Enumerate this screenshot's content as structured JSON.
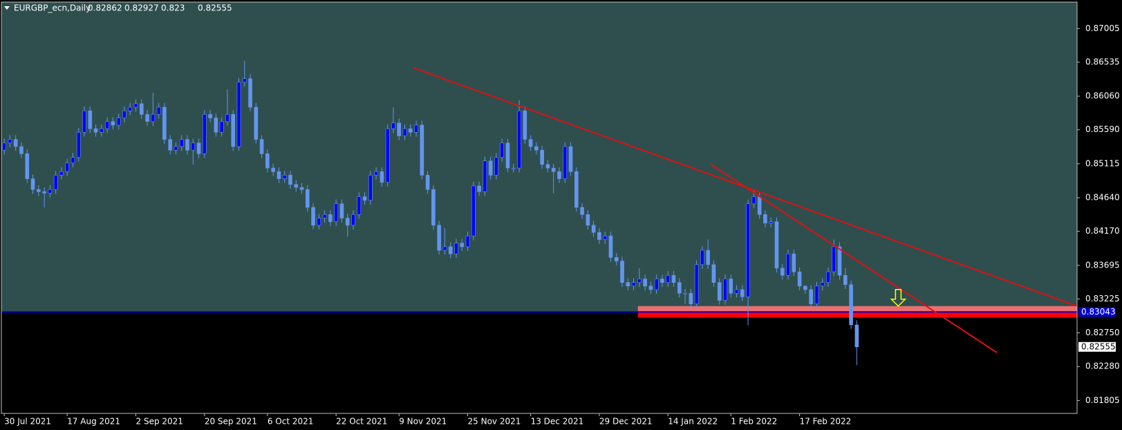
{
  "chart_data": {
    "type": "candlestick",
    "symbol": "EURGBP_ecn,Daily",
    "categories": [
      "30 Jul 2021",
      null,
      null,
      null,
      null,
      null,
      null,
      null,
      null,
      null,
      null,
      "17 Aug 2021",
      null,
      null,
      null,
      null,
      null,
      null,
      null,
      null,
      null,
      null,
      null,
      "2 Sep 2021",
      null,
      null,
      null,
      null,
      null,
      null,
      null,
      null,
      null,
      null,
      null,
      "20 Sep 2021",
      null,
      null,
      null,
      null,
      null,
      null,
      null,
      null,
      null,
      null,
      "6 Oct 2021",
      null,
      null,
      null,
      null,
      null,
      null,
      null,
      null,
      null,
      null,
      null,
      "22 Oct 2021",
      null,
      null,
      null,
      null,
      null,
      null,
      null,
      null,
      null,
      null,
      "9 Nov 2021",
      null,
      null,
      null,
      null,
      null,
      null,
      null,
      null,
      null,
      null,
      null,
      "25 Nov 2021",
      null,
      null,
      null,
      null,
      null,
      null,
      null,
      null,
      null,
      null,
      "13 Dec 2021",
      null,
      null,
      null,
      null,
      null,
      null,
      null,
      null,
      null,
      null,
      null,
      "29 Dec 2021",
      null,
      null,
      null,
      null,
      null,
      null,
      null,
      null,
      null,
      null,
      null,
      "14 Jan 2022",
      null,
      null,
      null,
      null,
      null,
      null,
      null,
      null,
      null,
      null,
      "1 Feb 2022",
      null,
      null,
      null,
      null,
      null,
      null,
      null,
      null,
      null,
      null,
      null,
      "17 Feb 2022",
      null,
      null,
      null,
      null,
      null,
      null,
      null,
      null,
      null,
      null
    ],
    "ohlc": [
      [
        0.85305,
        0.85465,
        0.85245,
        0.85405
      ],
      [
        0.85405,
        0.85515,
        0.85345,
        0.85455
      ],
      [
        0.85455,
        0.85515,
        0.85295,
        0.85355
      ],
      [
        0.85355,
        0.85415,
        0.85195,
        0.85255
      ],
      [
        0.85255,
        0.85315,
        0.84845,
        0.84905
      ],
      [
        0.84905,
        0.84965,
        0.84695,
        0.84755
      ],
      [
        0.84755,
        0.84815,
        0.84665,
        0.84725
      ],
      [
        0.84725,
        0.84785,
        0.84505,
        0.84705
      ],
      [
        0.84705,
        0.84815,
        0.84645,
        0.84755
      ],
      [
        0.84755,
        0.85015,
        0.84695,
        0.84955
      ],
      [
        0.84955,
        0.85065,
        0.84895,
        0.85005
      ],
      [
        0.85005,
        0.85185,
        0.84945,
        0.85125
      ],
      [
        0.85125,
        0.85265,
        0.85065,
        0.85205
      ],
      [
        0.85205,
        0.85615,
        0.85145,
        0.85555
      ],
      [
        0.85555,
        0.85915,
        0.85495,
        0.85855
      ],
      [
        0.85855,
        0.85915,
        0.85545,
        0.85605
      ],
      [
        0.85605,
        0.85665,
        0.85495,
        0.85555
      ],
      [
        0.85555,
        0.85665,
        0.85495,
        0.85605
      ],
      [
        0.85605,
        0.85765,
        0.85545,
        0.85705
      ],
      [
        0.85705,
        0.85765,
        0.85595,
        0.85655
      ],
      [
        0.85655,
        0.85815,
        0.85595,
        0.85755
      ],
      [
        0.85755,
        0.85915,
        0.85695,
        0.85855
      ],
      [
        0.85855,
        0.85965,
        0.85795,
        0.85905
      ],
      [
        0.85905,
        0.86015,
        0.85845,
        0.85955
      ],
      [
        0.85955,
        0.86015,
        0.85745,
        0.85805
      ],
      [
        0.85805,
        0.85865,
        0.85645,
        0.85705
      ],
      [
        0.85705,
        0.86105,
        0.85645,
        0.85805
      ],
      [
        0.85805,
        0.85965,
        0.85745,
        0.85905
      ],
      [
        0.85905,
        0.85965,
        0.85395,
        0.85455
      ],
      [
        0.85455,
        0.85515,
        0.85245,
        0.85305
      ],
      [
        0.85305,
        0.85415,
        0.85245,
        0.85355
      ],
      [
        0.85355,
        0.85515,
        0.85295,
        0.85455
      ],
      [
        0.85455,
        0.85515,
        0.85245,
        0.85305
      ],
      [
        0.85305,
        0.85465,
        0.85105,
        0.85405
      ],
      [
        0.85405,
        0.85465,
        0.85195,
        0.85255
      ],
      [
        0.85255,
        0.85865,
        0.85195,
        0.85805
      ],
      [
        0.85805,
        0.85865,
        0.85695,
        0.85755
      ],
      [
        0.85755,
        0.85815,
        0.85495,
        0.85555
      ],
      [
        0.85555,
        0.85765,
        0.85495,
        0.85705
      ],
      [
        0.85705,
        0.86155,
        0.85645,
        0.85805
      ],
      [
        0.85805,
        0.85865,
        0.85295,
        0.85355
      ],
      [
        0.85355,
        0.86315,
        0.85295,
        0.86255
      ],
      [
        0.86255,
        0.86555,
        0.86195,
        0.86305
      ],
      [
        0.86305,
        0.86365,
        0.85845,
        0.85905
      ],
      [
        0.85905,
        0.85965,
        0.85395,
        0.85455
      ],
      [
        0.85455,
        0.85515,
        0.85195,
        0.85255
      ],
      [
        0.85255,
        0.85315,
        0.84995,
        0.85055
      ],
      [
        0.85055,
        0.85115,
        0.84945,
        0.85005
      ],
      [
        0.85005,
        0.85065,
        0.84845,
        0.84905
      ],
      [
        0.84905,
        0.85015,
        0.84845,
        0.84955
      ],
      [
        0.84955,
        0.85015,
        0.84765,
        0.84825
      ],
      [
        0.84825,
        0.84885,
        0.84725,
        0.84785
      ],
      [
        0.84785,
        0.84845,
        0.84695,
        0.84755
      ],
      [
        0.84755,
        0.84815,
        0.84445,
        0.84505
      ],
      [
        0.84505,
        0.84565,
        0.84195,
        0.84255
      ],
      [
        0.84255,
        0.84415,
        0.84195,
        0.84355
      ],
      [
        0.84355,
        0.84465,
        0.84295,
        0.84405
      ],
      [
        0.84405,
        0.84465,
        0.84245,
        0.84305
      ],
      [
        0.84305,
        0.84615,
        0.84245,
        0.84555
      ],
      [
        0.84555,
        0.84615,
        0.84295,
        0.84355
      ],
      [
        0.84355,
        0.84415,
        0.84095,
        0.84255
      ],
      [
        0.84255,
        0.84465,
        0.84195,
        0.84405
      ],
      [
        0.84405,
        0.84715,
        0.84345,
        0.84655
      ],
      [
        0.84655,
        0.84715,
        0.84545,
        0.84605
      ],
      [
        0.84605,
        0.85015,
        0.84545,
        0.84955
      ],
      [
        0.84955,
        0.85065,
        0.84895,
        0.85005
      ],
      [
        0.85005,
        0.85065,
        0.84795,
        0.84855
      ],
      [
        0.84855,
        0.85665,
        0.84795,
        0.85605
      ],
      [
        0.85605,
        0.85905,
        0.85545,
        0.85685
      ],
      [
        0.85685,
        0.85745,
        0.85445,
        0.85505
      ],
      [
        0.85505,
        0.85665,
        0.85445,
        0.85605
      ],
      [
        0.85605,
        0.85665,
        0.85495,
        0.85555
      ],
      [
        0.85555,
        0.85715,
        0.85495,
        0.85655
      ],
      [
        0.85655,
        0.85715,
        0.84895,
        0.84955
      ],
      [
        0.84955,
        0.85015,
        0.84695,
        0.84755
      ],
      [
        0.84755,
        0.84815,
        0.84195,
        0.84255
      ],
      [
        0.84255,
        0.84315,
        0.83845,
        0.83905
      ],
      [
        0.83905,
        0.84215,
        0.83845,
        0.83955
      ],
      [
        0.83955,
        0.84015,
        0.83795,
        0.83855
      ],
      [
        0.83855,
        0.84065,
        0.83795,
        0.84005
      ],
      [
        0.84005,
        0.84065,
        0.83895,
        0.83955
      ],
      [
        0.83955,
        0.84165,
        0.83895,
        0.84105
      ],
      [
        0.84105,
        0.84865,
        0.84045,
        0.84805
      ],
      [
        0.84805,
        0.84865,
        0.84665,
        0.84725
      ],
      [
        0.84725,
        0.85215,
        0.84665,
        0.85155
      ],
      [
        0.85155,
        0.85215,
        0.84895,
        0.84955
      ],
      [
        0.84955,
        0.85265,
        0.84895,
        0.85205
      ],
      [
        0.85205,
        0.85465,
        0.85145,
        0.85405
      ],
      [
        0.85405,
        0.85465,
        0.84995,
        0.85055
      ],
      [
        0.85055,
        0.85115,
        0.84995,
        0.85055
      ],
      [
        0.85055,
        0.86005,
        0.84995,
        0.85855
      ],
      [
        0.85855,
        0.85915,
        0.85395,
        0.85455
      ],
      [
        0.85455,
        0.85515,
        0.85295,
        0.85355
      ],
      [
        0.85355,
        0.85415,
        0.85245,
        0.85305
      ],
      [
        0.85305,
        0.85365,
        0.85045,
        0.85105
      ],
      [
        0.85105,
        0.85165,
        0.84995,
        0.85055
      ],
      [
        0.85055,
        0.85115,
        0.84705,
        0.85005
      ],
      [
        0.85005,
        0.85065,
        0.84845,
        0.84905
      ],
      [
        0.84905,
        0.85415,
        0.84845,
        0.85355
      ],
      [
        0.85355,
        0.85415,
        0.84945,
        0.85005
      ],
      [
        0.85005,
        0.85065,
        0.84445,
        0.84505
      ],
      [
        0.84505,
        0.84565,
        0.84345,
        0.84405
      ],
      [
        0.84405,
        0.84465,
        0.84195,
        0.84255
      ],
      [
        0.84255,
        0.84315,
        0.84095,
        0.84155
      ],
      [
        0.84155,
        0.84215,
        0.83995,
        0.84055
      ],
      [
        0.84055,
        0.84165,
        0.83995,
        0.84105
      ],
      [
        0.84105,
        0.84165,
        0.83745,
        0.83805
      ],
      [
        0.83805,
        0.83865,
        0.83695,
        0.83755
      ],
      [
        0.83755,
        0.83815,
        0.83395,
        0.83455
      ],
      [
        0.83455,
        0.83515,
        0.83345,
        0.83405
      ],
      [
        0.83405,
        0.83515,
        0.83345,
        0.83455
      ],
      [
        0.83455,
        0.83655,
        0.83395,
        0.83505
      ],
      [
        0.83505,
        0.83565,
        0.83345,
        0.83405
      ],
      [
        0.83405,
        0.83465,
        0.83295,
        0.83355
      ],
      [
        0.83355,
        0.83565,
        0.83295,
        0.83505
      ],
      [
        0.83505,
        0.83565,
        0.83395,
        0.83455
      ],
      [
        0.83455,
        0.83615,
        0.83395,
        0.83555
      ],
      [
        0.83555,
        0.83615,
        0.83395,
        0.83455
      ],
      [
        0.83455,
        0.83515,
        0.83245,
        0.83305
      ],
      [
        0.83305,
        0.83365,
        0.83155,
        0.83305
      ],
      [
        0.83305,
        0.83365,
        0.83095,
        0.83155
      ],
      [
        0.83155,
        0.83765,
        0.83095,
        0.83705
      ],
      [
        0.83705,
        0.83965,
        0.83645,
        0.83905
      ],
      [
        0.83905,
        0.84055,
        0.83645,
        0.83705
      ],
      [
        0.83705,
        0.83765,
        0.83395,
        0.83455
      ],
      [
        0.83455,
        0.83515,
        0.83145,
        0.83205
      ],
      [
        0.83205,
        0.83565,
        0.83145,
        0.83505
      ],
      [
        0.83505,
        0.83565,
        0.83245,
        0.83305
      ],
      [
        0.83305,
        0.83415,
        0.83245,
        0.83355
      ],
      [
        0.83355,
        0.83415,
        0.83195,
        0.83255
      ],
      [
        0.83255,
        0.84615,
        0.82855,
        0.84555
      ],
      [
        0.84555,
        0.84755,
        0.84495,
        0.84655
      ],
      [
        0.84655,
        0.84715,
        0.84345,
        0.84405
      ],
      [
        0.84405,
        0.84465,
        0.84225,
        0.84285
      ],
      [
        0.84285,
        0.84365,
        0.84225,
        0.84305
      ],
      [
        0.84305,
        0.84365,
        0.83595,
        0.83655
      ],
      [
        0.83655,
        0.83715,
        0.83495,
        0.83555
      ],
      [
        0.83555,
        0.83915,
        0.83495,
        0.83855
      ],
      [
        0.83855,
        0.83915,
        0.83545,
        0.83605
      ],
      [
        0.83605,
        0.83665,
        0.83345,
        0.83405
      ],
      [
        0.83405,
        0.83415,
        0.83295,
        0.83355
      ],
      [
        0.83355,
        0.83415,
        0.83095,
        0.83155
      ],
      [
        0.83155,
        0.83465,
        0.83095,
        0.83405
      ],
      [
        0.83405,
        0.83515,
        0.83345,
        0.83455
      ],
      [
        0.83455,
        0.83665,
        0.83395,
        0.83605
      ],
      [
        0.83605,
        0.84055,
        0.83545,
        0.83955
      ],
      [
        0.83955,
        0.84015,
        0.83495,
        0.83555
      ],
      [
        0.83555,
        0.83655,
        0.83365,
        0.83425
      ],
      [
        0.83425,
        0.83485,
        0.82805,
        0.82862
      ],
      [
        0.82862,
        0.82927,
        0.823,
        0.82555
      ]
    ],
    "up_color": "#0000ff",
    "down_color": "#6495ed",
    "wick_color": "#6495ed",
    "xlim": [
      -0.5,
      187.5
    ],
    "ylim": [
      0.81625,
      0.87375
    ],
    "yticks": [
      0.87005,
      0.86535,
      {
        "value": 0.8606,
        "label": "0.86060"
      },
      {
        "value": 0.8559,
        "label": "0.85590"
      },
      0.85115,
      {
        "value": 0.8464,
        "label": "0.84640"
      },
      {
        "value": 0.8417,
        "label": "0.84170"
      },
      0.83695,
      0.83225,
      {
        "value": 0.8275,
        "label": "0.82750"
      },
      {
        "value": 0.8228,
        "label": "0.82280"
      },
      0.81805
    ],
    "hline": 0.83043,
    "hline_color": "#0000cd",
    "upper_background": "#2f4f4f",
    "lower_background": "#000000",
    "zones": [
      {
        "from": 0.83045,
        "to": 0.83125,
        "x_start": 110.75,
        "color": "#e87070"
      },
      {
        "from": 0.82965,
        "to": 0.83045,
        "x_start": 110.75,
        "color": "#ff0000"
      }
    ],
    "trendlines": [
      {
        "x": [
          71.5,
          187.5
        ],
        "y": [
          0.86455,
          0.83125
        ],
        "color": "#e01010"
      },
      {
        "x": [
          123.5,
          173.5
        ],
        "y": [
          0.85105,
          0.82475
        ],
        "color": "#e01010"
      }
    ],
    "arrow": {
      "x": 156.25,
      "y": 0.83125,
      "color": "#ffff00"
    }
  }
}
